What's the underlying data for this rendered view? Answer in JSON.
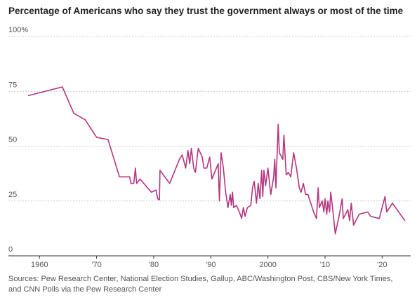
{
  "chart_data": {
    "type": "line",
    "title": "Percentage of Americans who say they trust the government always or most of the time",
    "source": "Sources: Pew Research Center, National Election Studies, Gallup, ABC/Washington Post, CBS/New York Times, and CNN Polls via the Pew Research Center",
    "color": "#b5357f",
    "x": [
      1958,
      1964,
      1966,
      1968,
      1970,
      1972,
      1974,
      1975.8,
      1976,
      1976.5,
      1976.8,
      1977,
      1977.6,
      1979.6,
      1980.4,
      1980.7,
      1981,
      1981.1,
      1982.8,
      1984.5,
      1985,
      1985.6,
      1986,
      1986.3,
      1986.6,
      1987,
      1987.3,
      1987.8,
      1988.5,
      1988.8,
      1989.3,
      1989.8,
      1990.2,
      1990.5,
      1991.3,
      1991.5,
      1991.8,
      1992.2,
      1992.6,
      1993,
      1993.4,
      1993.6,
      1993.8,
      1994,
      1994.5,
      1995,
      1995.4,
      1995.7,
      1996,
      1996.4,
      1997,
      1997.3,
      1997.6,
      1998,
      1998.3,
      1998.6,
      1998.9,
      1999.1,
      1999.3,
      1999.6,
      2000,
      2000.5,
      2001,
      2001.2,
      2001.4,
      2001.8,
      2002,
      2002.6,
      2002.8,
      2003.2,
      2003.6,
      2004,
      2004.5,
      2005,
      2005.5,
      2005.8,
      2006.2,
      2006.6,
      2007,
      2007.5,
      2008,
      2008.5,
      2008.8,
      2009,
      2009.5,
      2009.8,
      2010,
      2010.3,
      2010.5,
      2010.8,
      2011,
      2011.4,
      2011.8,
      2012.2,
      2012.6,
      2013,
      2013.2,
      2013.6,
      2014,
      2014.3,
      2014.6,
      2015,
      2016,
      2017.5,
      2018,
      2019.5,
      2020.5,
      2020.8,
      2021.8,
      2024
    ],
    "values": [
      73,
      77,
      65,
      62,
      54,
      53,
      36,
      36,
      33,
      33,
      40,
      33,
      35,
      29,
      30,
      26,
      25.5,
      39,
      33,
      44,
      46,
      40,
      48,
      42,
      49,
      40,
      38,
      49,
      45,
      40,
      40,
      45,
      35,
      37,
      42,
      25,
      47,
      40,
      29,
      22,
      28,
      23,
      29,
      22,
      23,
      20,
      17,
      22,
      18,
      22,
      23,
      31,
      34,
      24,
      33,
      26,
      39,
      27,
      39,
      32,
      40,
      28,
      36,
      44,
      31,
      60,
      47,
      44,
      55,
      37,
      38,
      36,
      47,
      40,
      31,
      29,
      33,
      28,
      28,
      24,
      20,
      17,
      31,
      22,
      25,
      20,
      26,
      19,
      25,
      20,
      29,
      20,
      10,
      15,
      20,
      26,
      17,
      19,
      21,
      16,
      24,
      14,
      19,
      20,
      18,
      17,
      27,
      20,
      24,
      16
    ],
    "xlim": [
      1958,
      2025
    ],
    "ylim": [
      0,
      100
    ],
    "xticks": [
      1960,
      {
        "value": 1970,
        "label": "'70"
      },
      {
        "value": 1980,
        "label": "'80"
      },
      {
        "value": 1990,
        "label": "'90"
      },
      2000,
      {
        "value": 2010,
        "label": "'10"
      },
      {
        "value": 2020,
        "label": "'20"
      }
    ],
    "yticks": [
      0,
      25,
      50,
      75,
      {
        "value": 100,
        "label": "100%"
      }
    ],
    "grid": true
  }
}
